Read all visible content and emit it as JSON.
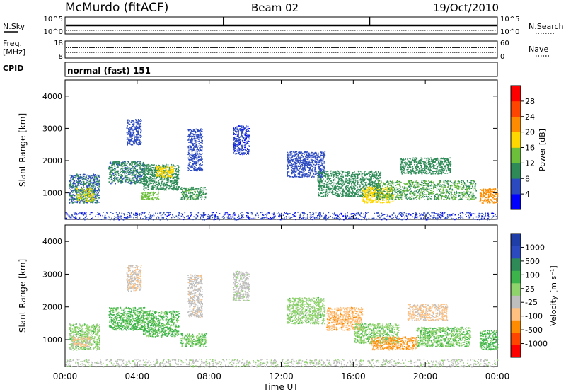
{
  "header": {
    "station": "McMurdo (fitACF)",
    "beam": "Beam 02",
    "date": "19/Oct/2010"
  },
  "strip_nsky": {
    "label": "N.Sky",
    "left_ticks": [
      "10^5",
      "10^0"
    ],
    "right_ticks": [
      "10^5",
      "10^0"
    ],
    "right_label": "N.Search"
  },
  "strip_freq": {
    "label_line1": "Freq.",
    "label_line2": "[MHz]",
    "left_ticks": [
      "18",
      "8"
    ],
    "right_ticks": [
      "60",
      "0"
    ],
    "right_label": "Nave"
  },
  "cpid": {
    "label": "CPID",
    "value": "normal (fast) 151"
  },
  "x_axis": {
    "label": "Time UT",
    "ticks": [
      "00:00",
      "04:00",
      "08:00",
      "12:00",
      "16:00",
      "20:00",
      "00:00"
    ]
  },
  "colors": {
    "power": [
      "#0000ff",
      "#2c4ac0",
      "#2e8b57",
      "#6bbf3a",
      "#ffd700",
      "#ff8c00",
      "#ff4500",
      "#ff0000"
    ],
    "velocity": [
      "#ff0000",
      "#ff4500",
      "#ff8c00",
      "#ffc080",
      "#bebebe",
      "#8ed36b",
      "#3cb44b",
      "#2e8b57",
      "#2c4ac0",
      "#1f3ea8"
    ]
  },
  "chart_data": [
    {
      "type": "heatmap",
      "title": "",
      "xlabel": "",
      "ylabel": "Slant Range [km]",
      "xlim": [
        0,
        24
      ],
      "ylim": [
        180,
        4500
      ],
      "y_ticks": [
        "1000",
        "2000",
        "3000",
        "4000"
      ],
      "colorbar": {
        "label": "Power [dB]",
        "ticks": [
          "4",
          "8",
          "12",
          "16",
          "20",
          "24",
          "28"
        ],
        "range": [
          0,
          32
        ]
      },
      "echo_regions": [
        {
          "x": [
            0.2,
            1.9
          ],
          "y": [
            700,
            1600
          ],
          "value": 8
        },
        {
          "x": [
            0.6,
            1.6
          ],
          "y": [
            750,
            1150
          ],
          "value": 16
        },
        {
          "x": [
            2.4,
            4.4
          ],
          "y": [
            1300,
            2000
          ],
          "value": 9
        },
        {
          "x": [
            3.4,
            4.2
          ],
          "y": [
            2500,
            3300
          ],
          "value": 6
        },
        {
          "x": [
            4.3,
            6.3
          ],
          "y": [
            1100,
            1900
          ],
          "value": 10
        },
        {
          "x": [
            5.0,
            6.0
          ],
          "y": [
            1500,
            1850
          ],
          "value": 18
        },
        {
          "x": [
            4.2,
            5.2
          ],
          "y": [
            800,
            1050
          ],
          "value": 14
        },
        {
          "x": [
            6.4,
            7.8
          ],
          "y": [
            800,
            1200
          ],
          "value": 11
        },
        {
          "x": [
            6.8,
            7.6
          ],
          "y": [
            1700,
            3000
          ],
          "value": 6
        },
        {
          "x": [
            9.3,
            10.2
          ],
          "y": [
            2200,
            3100
          ],
          "value": 5
        },
        {
          "x": [
            12.3,
            14.4
          ],
          "y": [
            1500,
            2300
          ],
          "value": 6
        },
        {
          "x": [
            14.0,
            17.5
          ],
          "y": [
            900,
            1700
          ],
          "value": 10
        },
        {
          "x": [
            16.5,
            18.2
          ],
          "y": [
            700,
            1200
          ],
          "value": 18
        },
        {
          "x": [
            17.2,
            22.8
          ],
          "y": [
            800,
            1400
          ],
          "value": 12
        },
        {
          "x": [
            18.6,
            21.4
          ],
          "y": [
            1600,
            2100
          ],
          "value": 10
        },
        {
          "x": [
            23.0,
            24.0
          ],
          "y": [
            700,
            1150
          ],
          "value": 22
        },
        {
          "x": [
            0.0,
            24.0
          ],
          "y": [
            180,
            420
          ],
          "value": 5
        }
      ]
    },
    {
      "type": "heatmap",
      "title": "",
      "xlabel": "Time UT",
      "ylabel": "Slant Range [km]",
      "xlim": [
        0,
        24
      ],
      "ylim": [
        180,
        4500
      ],
      "y_ticks": [
        "1000",
        "2000",
        "3000",
        "4000"
      ],
      "colorbar": {
        "label": "Velocity [m s⁻¹]",
        "ticks": [
          "-1000",
          "-500",
          "-100",
          "-25",
          "25",
          "100",
          "500",
          "1000"
        ],
        "range": [
          -1200,
          1200
        ]
      },
      "echo_regions": [
        {
          "x": [
            0.2,
            1.9
          ],
          "y": [
            700,
            1500
          ],
          "value": 120
        },
        {
          "x": [
            0.4,
            1.4
          ],
          "y": [
            800,
            1100
          ],
          "value": -300
        },
        {
          "x": [
            2.4,
            4.4
          ],
          "y": [
            1300,
            2000
          ],
          "value": 300
        },
        {
          "x": [
            3.4,
            4.2
          ],
          "y": [
            2500,
            3300
          ],
          "value": -200
        },
        {
          "x": [
            4.3,
            6.3
          ],
          "y": [
            1100,
            1900
          ],
          "value": 300
        },
        {
          "x": [
            6.4,
            7.8
          ],
          "y": [
            800,
            1200
          ],
          "value": 200
        },
        {
          "x": [
            6.8,
            7.6
          ],
          "y": [
            1700,
            3000
          ],
          "value": -150
        },
        {
          "x": [
            9.3,
            10.2
          ],
          "y": [
            2200,
            3100
          ],
          "value": -100
        },
        {
          "x": [
            12.3,
            14.4
          ],
          "y": [
            1500,
            2300
          ],
          "value": 120
        },
        {
          "x": [
            14.5,
            16.5
          ],
          "y": [
            1300,
            2000
          ],
          "value": -400
        },
        {
          "x": [
            16.0,
            18.5
          ],
          "y": [
            900,
            1500
          ],
          "value": 150
        },
        {
          "x": [
            17.0,
            19.5
          ],
          "y": [
            700,
            1100
          ],
          "value": -500
        },
        {
          "x": [
            19.5,
            22.5
          ],
          "y": [
            800,
            1400
          ],
          "value": 200
        },
        {
          "x": [
            19.0,
            21.2
          ],
          "y": [
            1600,
            2100
          ],
          "value": -300
        },
        {
          "x": [
            23.0,
            24.0
          ],
          "y": [
            700,
            1300
          ],
          "value": 300
        },
        {
          "x": [
            0.0,
            24.0
          ],
          "y": [
            180,
            420
          ],
          "value": -50
        }
      ]
    }
  ]
}
